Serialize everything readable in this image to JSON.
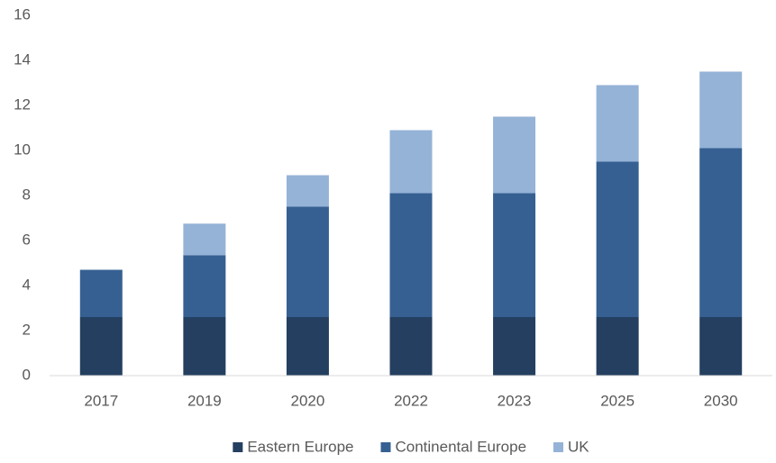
{
  "chart_data": {
    "type": "stacked_bar",
    "categories": [
      "2017",
      "2019",
      "2020",
      "2022",
      "2023",
      "2025",
      "2030"
    ],
    "series": [
      {
        "name": "Eastern Europe",
        "color": "#243f60",
        "values": [
          2.6,
          2.6,
          2.6,
          2.6,
          2.6,
          2.6,
          2.6
        ]
      },
      {
        "name": "Continental Europe",
        "color": "#366092",
        "values": [
          2.1,
          2.75,
          4.9,
          5.5,
          5.5,
          6.9,
          7.5
        ]
      },
      {
        "name": "UK",
        "color": "#95b3d7",
        "values": [
          0,
          1.4,
          1.4,
          2.8,
          3.4,
          3.4,
          3.4
        ]
      }
    ],
    "ylim": [
      0,
      16
    ],
    "yticks": [
      0,
      2,
      4,
      6,
      8,
      10,
      12,
      14,
      16
    ],
    "grid": false,
    "legend": "bottom"
  }
}
